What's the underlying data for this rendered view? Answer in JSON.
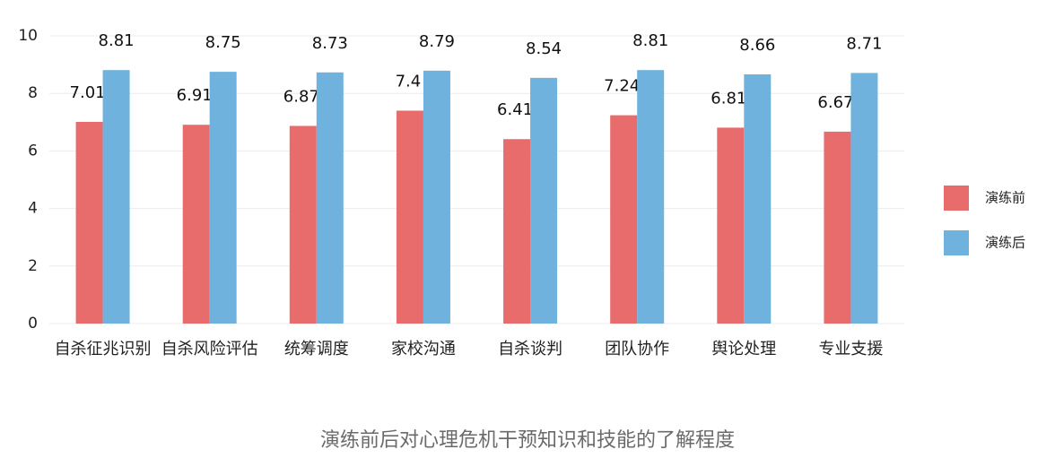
{
  "chart_data": {
    "type": "bar",
    "title": "演练前后对心理危机干预知识和技能的了解程度",
    "categories": [
      "自杀征兆识别",
      "自杀风险评估",
      "统筹调度",
      "家校沟通",
      "自杀谈判",
      "团队协作",
      "舆论处理",
      "专业支援"
    ],
    "series": [
      {
        "name": "演练前",
        "color": "#e96c6c",
        "values": [
          7.01,
          6.91,
          6.87,
          7.4,
          6.41,
          7.24,
          6.81,
          6.67
        ]
      },
      {
        "name": "演练后",
        "color": "#6fb2de",
        "values": [
          8.81,
          8.75,
          8.73,
          8.79,
          8.54,
          8.81,
          8.66,
          8.71
        ]
      }
    ],
    "ylim": [
      0,
      10
    ],
    "yticks": [
      0,
      2,
      4,
      6,
      8,
      10
    ],
    "grid": true,
    "legend_position": "right"
  }
}
